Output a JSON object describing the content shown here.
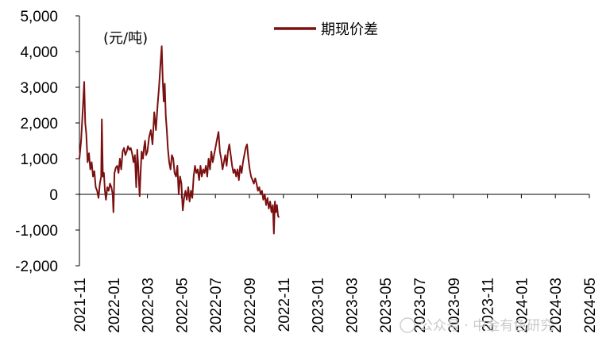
{
  "chart_data": {
    "type": "line",
    "ylabel": "(元/吨)",
    "ylim": [
      -2000,
      5000
    ],
    "yticks": [
      -2000,
      -1000,
      0,
      1000,
      2000,
      3000,
      4000,
      5000
    ],
    "ytick_labels": [
      "-2,000",
      "-1,000",
      "0",
      "1,000",
      "2,000",
      "3,000",
      "4,000",
      "5,000"
    ],
    "xticks": [
      "2021-11",
      "2022-01",
      "2022-03",
      "2022-05",
      "2022-07",
      "2022-09",
      "2022-11",
      "2023-01",
      "2023-03",
      "2023-05",
      "2023-07",
      "2023-09",
      "2023-11",
      "2024-01",
      "2024-03",
      "2024-05"
    ],
    "legend_position": "top-center",
    "grid": false,
    "color": "#7b1010",
    "series": [
      {
        "name": "期现价差",
        "points": [
          [
            0.0,
            1000
          ],
          [
            0.05,
            1500
          ],
          [
            0.1,
            2400
          ],
          [
            0.14,
            3150
          ],
          [
            0.17,
            2000
          ],
          [
            0.2,
            1700
          ],
          [
            0.24,
            900
          ],
          [
            0.28,
            1150
          ],
          [
            0.32,
            700
          ],
          [
            0.36,
            900
          ],
          [
            0.4,
            500
          ],
          [
            0.44,
            650
          ],
          [
            0.48,
            200
          ],
          [
            0.52,
            100
          ],
          [
            0.56,
            -100
          ],
          [
            0.6,
            300
          ],
          [
            0.64,
            500
          ],
          [
            0.66,
            2100
          ],
          [
            0.69,
            500
          ],
          [
            0.72,
            600
          ],
          [
            0.75,
            100
          ],
          [
            0.78,
            -150
          ],
          [
            0.82,
            200
          ],
          [
            0.86,
            100
          ],
          [
            0.9,
            300
          ],
          [
            0.94,
            200
          ],
          [
            0.98,
            0
          ],
          [
            1.0,
            -500
          ],
          [
            1.03,
            600
          ],
          [
            1.07,
            750
          ],
          [
            1.11,
            800
          ],
          [
            1.15,
            600
          ],
          [
            1.19,
            1000
          ],
          [
            1.23,
            700
          ],
          [
            1.27,
            1200
          ],
          [
            1.31,
            1300
          ],
          [
            1.35,
            1100
          ],
          [
            1.39,
            1200
          ],
          [
            1.43,
            1350
          ],
          [
            1.47,
            1250
          ],
          [
            1.51,
            1300
          ],
          [
            1.55,
            1150
          ],
          [
            1.59,
            900
          ],
          [
            1.63,
            1100
          ],
          [
            1.67,
            200
          ],
          [
            1.7,
            1250
          ],
          [
            1.73,
            800
          ],
          [
            1.77,
            -50
          ],
          [
            1.8,
            600
          ],
          [
            1.83,
            1200
          ],
          [
            1.87,
            1000
          ],
          [
            1.9,
            1300
          ],
          [
            1.93,
            1500
          ],
          [
            1.96,
            1100
          ],
          [
            2.0,
            1200
          ],
          [
            2.05,
            1600
          ],
          [
            2.1,
            1800
          ],
          [
            2.15,
            1400
          ],
          [
            2.2,
            2300
          ],
          [
            2.25,
            1800
          ],
          [
            2.3,
            2500
          ],
          [
            2.34,
            3000
          ],
          [
            2.38,
            3600
          ],
          [
            2.42,
            4150
          ],
          [
            2.45,
            3200
          ],
          [
            2.48,
            2600
          ],
          [
            2.51,
            3100
          ],
          [
            2.54,
            2200
          ],
          [
            2.57,
            1800
          ],
          [
            2.6,
            1300
          ],
          [
            2.64,
            900
          ],
          [
            2.68,
            700
          ],
          [
            2.72,
            1100
          ],
          [
            2.76,
            1000
          ],
          [
            2.8,
            600
          ],
          [
            2.84,
            500
          ],
          [
            2.88,
            800
          ],
          [
            2.92,
            0
          ],
          [
            2.96,
            500
          ],
          [
            3.0,
            300
          ],
          [
            3.04,
            -450
          ],
          [
            3.08,
            -100
          ],
          [
            3.12,
            100
          ],
          [
            3.16,
            -150
          ],
          [
            3.2,
            200
          ],
          [
            3.24,
            -200
          ],
          [
            3.28,
            100
          ],
          [
            3.32,
            -100
          ],
          [
            3.36,
            500
          ],
          [
            3.4,
            800
          ],
          [
            3.44,
            600
          ],
          [
            3.48,
            700
          ],
          [
            3.52,
            400
          ],
          [
            3.56,
            800
          ],
          [
            3.6,
            500
          ],
          [
            3.64,
            700
          ],
          [
            3.68,
            600
          ],
          [
            3.72,
            800
          ],
          [
            3.76,
            500
          ],
          [
            3.8,
            1000
          ],
          [
            3.84,
            700
          ],
          [
            3.88,
            1200
          ],
          [
            3.92,
            900
          ],
          [
            3.96,
            1100
          ],
          [
            4.0,
            1300
          ],
          [
            4.05,
            1550
          ],
          [
            4.09,
            1750
          ],
          [
            4.13,
            1200
          ],
          [
            4.17,
            1000
          ],
          [
            4.21,
            700
          ],
          [
            4.25,
            900
          ],
          [
            4.29,
            1100
          ],
          [
            4.33,
            800
          ],
          [
            4.37,
            1200
          ],
          [
            4.41,
            1400
          ],
          [
            4.45,
            1100
          ],
          [
            4.49,
            800
          ],
          [
            4.53,
            600
          ],
          [
            4.57,
            700
          ],
          [
            4.61,
            500
          ],
          [
            4.65,
            700
          ],
          [
            4.69,
            400
          ],
          [
            4.73,
            800
          ],
          [
            4.77,
            600
          ],
          [
            4.81,
            900
          ],
          [
            4.85,
            1100
          ],
          [
            4.89,
            1300
          ],
          [
            4.93,
            1400
          ],
          [
            4.97,
            1000
          ],
          [
            5.01,
            700
          ],
          [
            5.05,
            500
          ],
          [
            5.09,
            400
          ],
          [
            5.13,
            300
          ],
          [
            5.17,
            450
          ],
          [
            5.21,
            300
          ],
          [
            5.25,
            100
          ],
          [
            5.29,
            200
          ],
          [
            5.33,
            0
          ],
          [
            5.37,
            100
          ],
          [
            5.41,
            -150
          ],
          [
            5.45,
            0
          ],
          [
            5.49,
            -300
          ],
          [
            5.53,
            -100
          ],
          [
            5.57,
            -400
          ],
          [
            5.61,
            -200
          ],
          [
            5.65,
            -500
          ],
          [
            5.69,
            -300
          ],
          [
            5.72,
            -1100
          ],
          [
            5.75,
            -200
          ],
          [
            5.78,
            -500
          ],
          [
            5.81,
            -300
          ],
          [
            5.84,
            -600
          ],
          [
            5.87,
            -650
          ]
        ]
      }
    ]
  },
  "watermark": "公众号 · 中金有色研究"
}
